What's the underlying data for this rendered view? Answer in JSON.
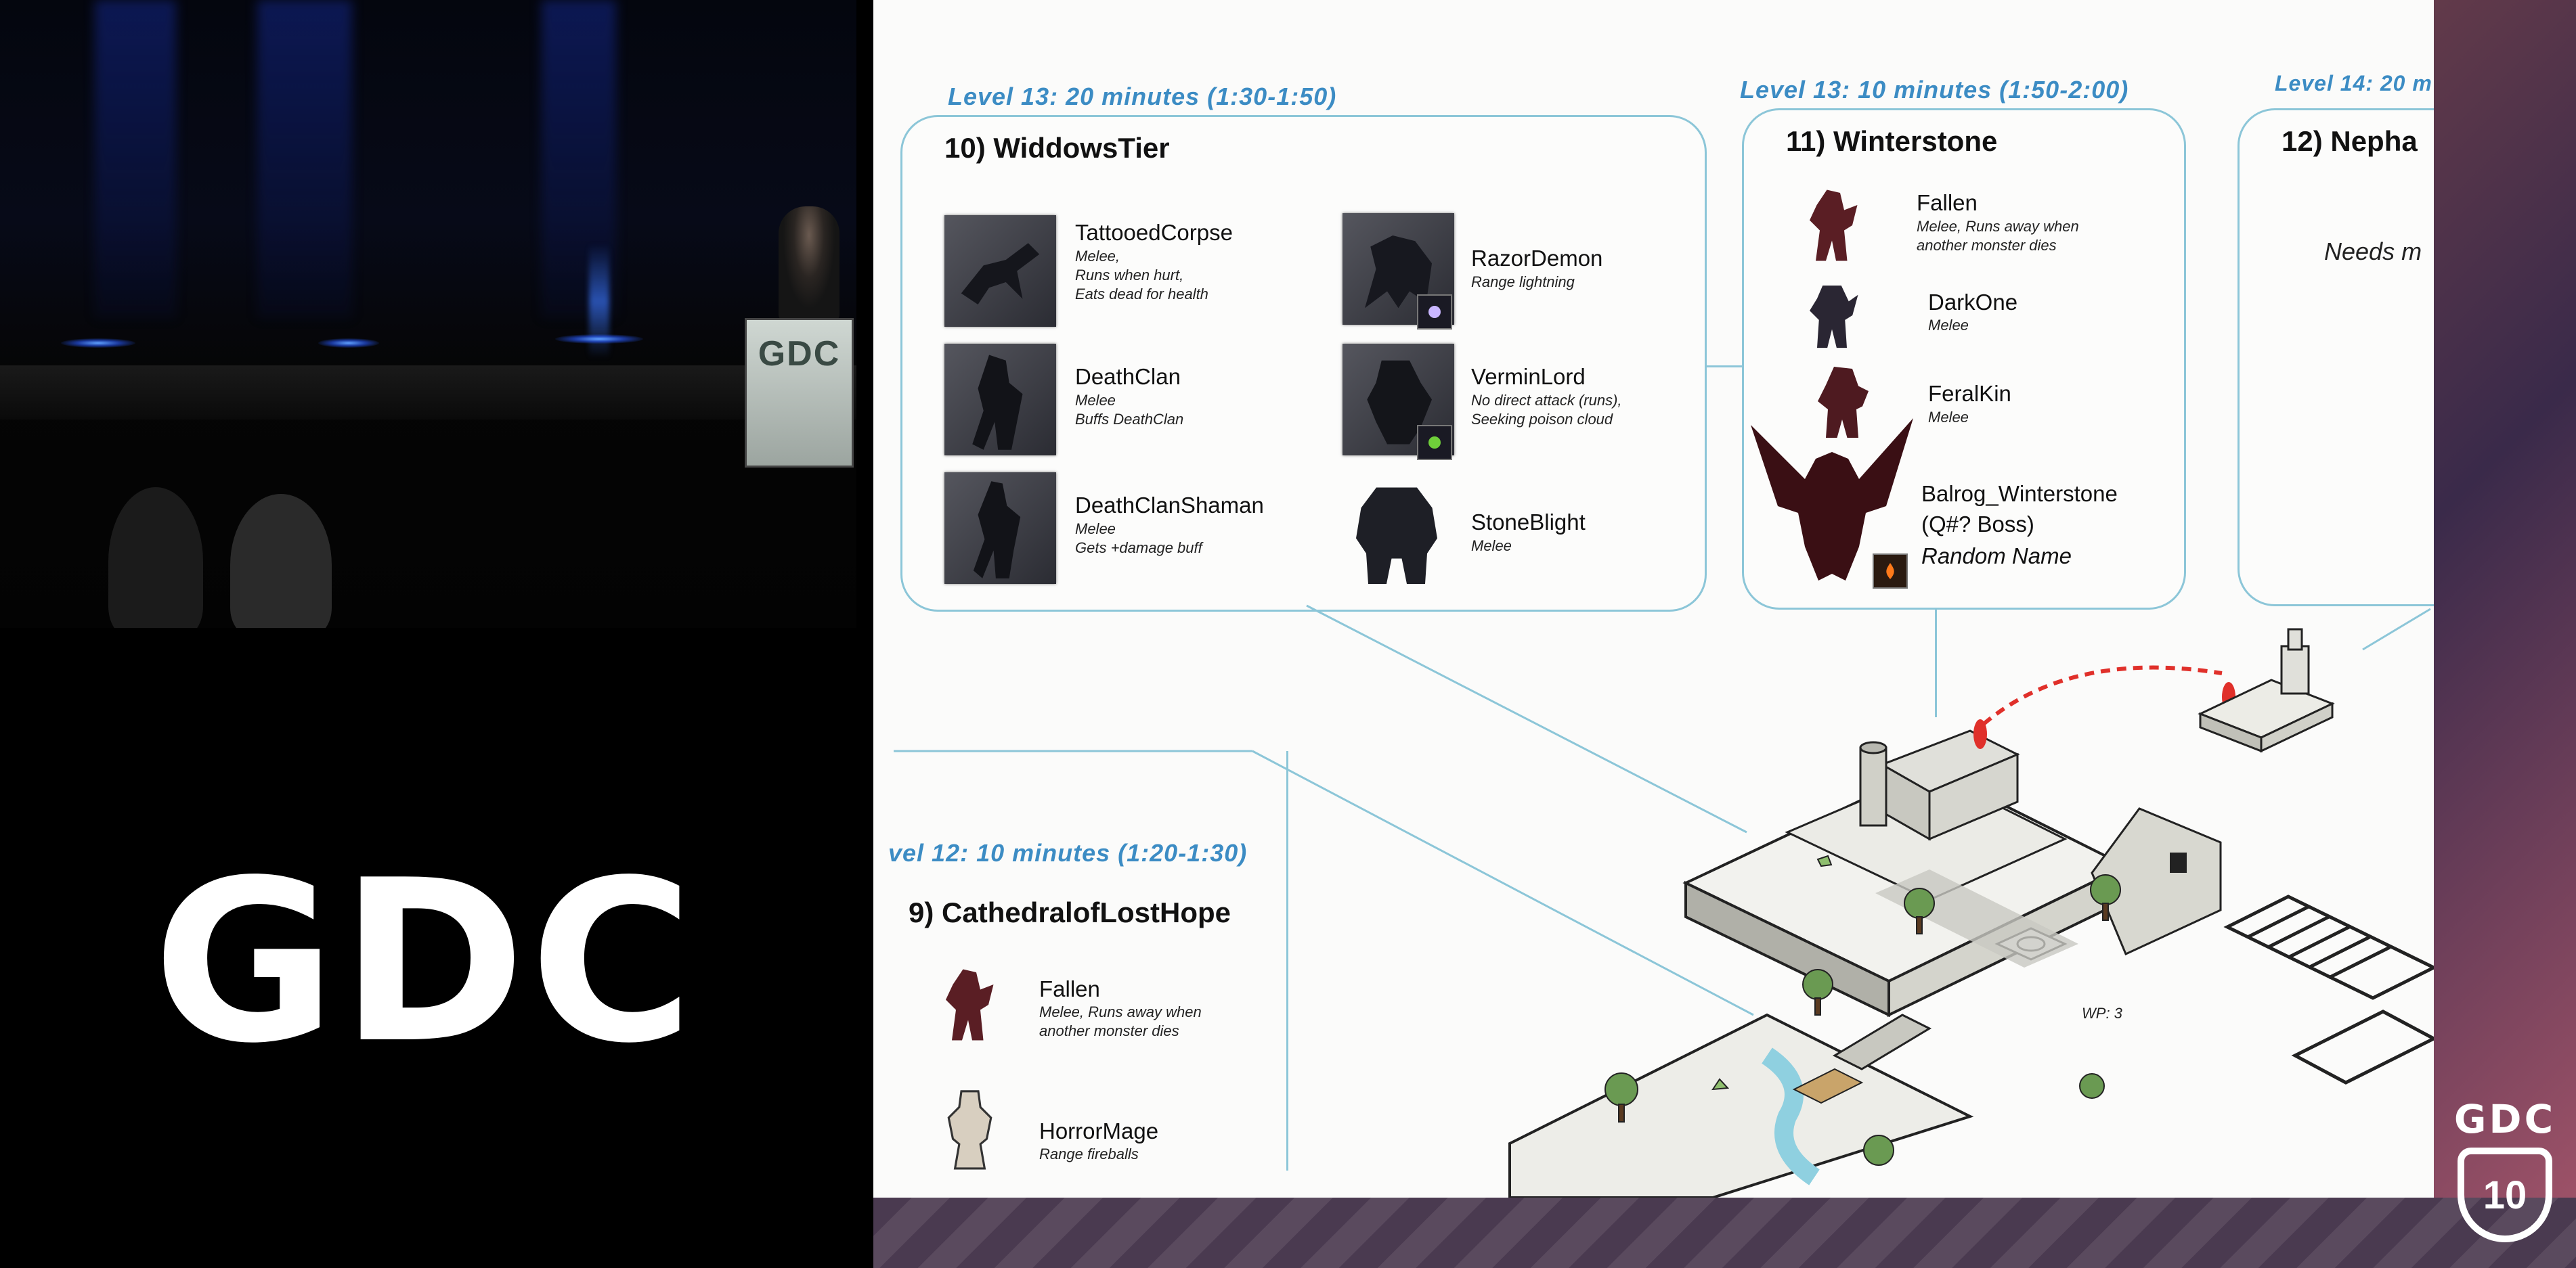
{
  "podium": {
    "logo": "GDC"
  },
  "branding": {
    "logo": "GDC",
    "corner_word": "GDC",
    "corner_number": "10"
  },
  "slide": {
    "levels": [
      {
        "id": "l13a",
        "label": "Level 13: 20 minutes (1:30-1:50)"
      },
      {
        "id": "l13b",
        "label": "Level 13: 10 minutes (1:50-2:00)"
      },
      {
        "id": "l14",
        "label": "Level 14: 20 m"
      },
      {
        "id": "l12",
        "label": "vel 12: 10 minutes (1:20-1:30)"
      }
    ],
    "widdowstier": {
      "title": "10) WiddowsTier",
      "monsters": [
        {
          "name": "TattooedCorpse",
          "desc": [
            "Melee,",
            "Runs when hurt,",
            "Eats dead for health"
          ]
        },
        {
          "name": "RazorDemon",
          "desc": [
            "Range lightning"
          ]
        },
        {
          "name": "DeathClan",
          "desc": [
            "Melee",
            "Buffs DeathClan"
          ]
        },
        {
          "name": "VerminLord",
          "desc": [
            "No direct attack (runs),",
            "Seeking poison cloud"
          ]
        },
        {
          "name": "DeathClanShaman",
          "desc": [
            "Melee",
            "Gets +damage buff"
          ]
        },
        {
          "name": "StoneBlight",
          "desc": [
            "Melee"
          ]
        }
      ]
    },
    "winterstone": {
      "title": "11) Winterstone",
      "monsters": [
        {
          "name": "Fallen",
          "desc": [
            "Melee, Runs away when",
            "another monster dies"
          ]
        },
        {
          "name": "DarkOne",
          "desc": [
            "Melee"
          ]
        },
        {
          "name": "FeralKin",
          "desc": [
            "Melee"
          ]
        },
        {
          "name": "Balrog_Winterstone",
          "desc": [
            "(Q#? Boss)",
            "Random Name"
          ]
        }
      ]
    },
    "nephalem": {
      "title": "12) Nepha",
      "note": "Needs m"
    },
    "cathedral": {
      "title": "9) CathedralofLostHope",
      "monsters": [
        {
          "name": "Fallen",
          "desc": [
            "Melee, Runs away when",
            "another monster dies"
          ]
        },
        {
          "name": "HorrorMage",
          "desc": [
            "Range fireballs"
          ]
        }
      ]
    },
    "map": {
      "waypoint_label": "WP: 3"
    }
  },
  "colors": {
    "panel_border": "#8cc6d8",
    "level_label": "#3c8cc4",
    "portal": "#e0302a"
  }
}
